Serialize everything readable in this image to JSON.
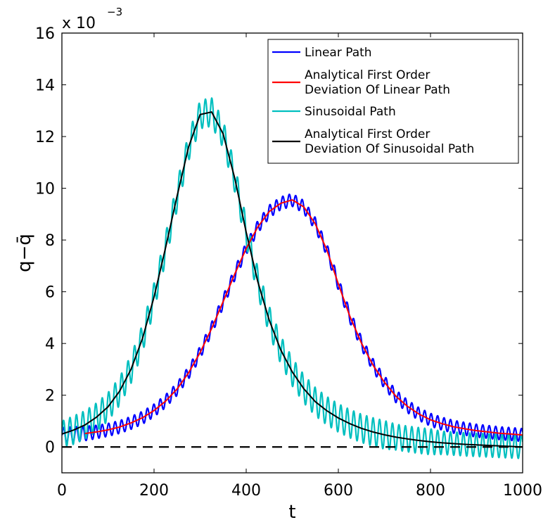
{
  "chart_data": {
    "type": "line",
    "xlabel": "t",
    "ylabel": "q−q̄",
    "exponent_label": "x 10",
    "exponent_power": "−3",
    "xlim": [
      0,
      1000
    ],
    "ylim": [
      -1,
      16
    ],
    "xticks": [
      0,
      200,
      400,
      600,
      800,
      1000
    ],
    "xtick_labels": [
      "0",
      "200",
      "400",
      "600",
      "800",
      "1000"
    ],
    "yticks": [
      0,
      2,
      4,
      6,
      8,
      10,
      12,
      14,
      16
    ],
    "ytick_labels": [
      "0",
      "2",
      "4",
      "6",
      "8",
      "10",
      "12",
      "14",
      "16"
    ],
    "grid": false,
    "legend_position": "top-right",
    "y_unit_scale": 0.001,
    "series": [
      {
        "name": "Linear Path",
        "color": "#0000ff",
        "style": "oscillating",
        "x": [
          0,
          25,
          50,
          75,
          100,
          125,
          150,
          175,
          200,
          225,
          250,
          275,
          300,
          325,
          350,
          375,
          400,
          425,
          450,
          475,
          500,
          525,
          550,
          575,
          600,
          625,
          650,
          675,
          700,
          725,
          750,
          775,
          800,
          825,
          850,
          875,
          900,
          925,
          950,
          975,
          1000
        ],
        "y": [
          0.45,
          0.48,
          0.52,
          0.58,
          0.66,
          0.77,
          0.93,
          1.13,
          1.41,
          1.77,
          2.24,
          2.87,
          3.65,
          4.58,
          5.62,
          6.68,
          7.67,
          8.5,
          9.1,
          9.42,
          9.55,
          9.28,
          8.62,
          7.62,
          6.3,
          5.05,
          4.02,
          3.17,
          2.5,
          1.96,
          1.57,
          1.27,
          1.05,
          0.9,
          0.78,
          0.7,
          0.63,
          0.58,
          0.53,
          0.5,
          0.46
        ],
        "oscillation_amplitude": [
          0.3,
          0.3,
          0.28,
          0.26,
          0.25,
          0.25,
          0.25,
          0.25,
          0.25,
          0.25,
          0.25,
          0.25,
          0.25,
          0.25,
          0.25,
          0.25,
          0.25,
          0.25,
          0.25,
          0.25,
          0.25,
          0.25,
          0.25,
          0.25,
          0.25,
          0.25,
          0.25,
          0.25,
          0.25,
          0.25,
          0.25,
          0.25,
          0.25,
          0.25,
          0.25,
          0.25,
          0.25,
          0.25,
          0.25,
          0.25,
          0.25
        ]
      },
      {
        "name": "Analytical First Order Deviation Of Linear Path",
        "color": "#ff0000",
        "style": "smooth",
        "x": [
          50,
          75,
          100,
          125,
          150,
          175,
          200,
          225,
          250,
          275,
          300,
          325,
          350,
          375,
          400,
          425,
          450,
          475,
          500,
          525,
          550,
          575,
          600,
          625,
          650,
          675,
          700,
          725,
          750,
          775,
          800,
          825,
          850,
          875,
          900,
          925,
          950,
          975,
          1000
        ],
        "y": [
          0.52,
          0.58,
          0.66,
          0.77,
          0.93,
          1.13,
          1.41,
          1.77,
          2.24,
          2.87,
          3.65,
          4.58,
          5.62,
          6.68,
          7.67,
          8.5,
          9.1,
          9.42,
          9.55,
          9.28,
          8.62,
          7.62,
          6.3,
          5.05,
          4.02,
          3.17,
          2.5,
          1.96,
          1.57,
          1.27,
          1.05,
          0.9,
          0.78,
          0.7,
          0.63,
          0.58,
          0.53,
          0.5,
          0.46
        ]
      },
      {
        "name": "Sinusoidal Path",
        "color": "#00bfbf",
        "style": "oscillating",
        "x": [
          0,
          25,
          50,
          75,
          100,
          125,
          150,
          175,
          200,
          225,
          250,
          275,
          300,
          325,
          350,
          375,
          400,
          425,
          450,
          475,
          500,
          525,
          550,
          575,
          600,
          625,
          650,
          675,
          700,
          725,
          750,
          775,
          800,
          825,
          850,
          875,
          900,
          925,
          950,
          975,
          1000
        ],
        "y": [
          0.5,
          0.65,
          0.85,
          1.15,
          1.55,
          2.15,
          3.0,
          4.2,
          5.8,
          7.7,
          9.7,
          11.6,
          12.85,
          12.95,
          12.1,
          10.4,
          8.3,
          6.4,
          4.9,
          3.75,
          2.9,
          2.25,
          1.75,
          1.4,
          1.12,
          0.9,
          0.72,
          0.58,
          0.47,
          0.38,
          0.31,
          0.25,
          0.2,
          0.16,
          0.13,
          0.1,
          0.08,
          0.06,
          0.04,
          0.02,
          0.0
        ],
        "oscillation_amplitude": [
          0.5,
          0.55,
          0.55,
          0.55,
          0.55,
          0.55,
          0.55,
          0.55,
          0.55,
          0.55,
          0.55,
          0.55,
          0.55,
          0.55,
          0.55,
          0.55,
          0.55,
          0.55,
          0.55,
          0.55,
          0.55,
          0.55,
          0.55,
          0.55,
          0.55,
          0.55,
          0.55,
          0.55,
          0.55,
          0.5,
          0.5,
          0.5,
          0.5,
          0.45,
          0.45,
          0.45,
          0.45,
          0.45,
          0.45,
          0.45,
          0.45
        ]
      },
      {
        "name": "Analytical First Order Deviation Of Sinusoidal Path",
        "color": "#000000",
        "style": "smooth",
        "x": [
          0,
          25,
          50,
          75,
          100,
          125,
          150,
          175,
          200,
          225,
          250,
          275,
          300,
          325,
          350,
          375,
          400,
          425,
          450,
          475,
          500,
          525,
          550,
          575,
          600,
          625,
          650,
          675,
          700,
          725,
          750,
          775,
          800,
          825,
          850,
          875,
          900,
          925,
          950,
          975,
          1000
        ],
        "y": [
          0.5,
          0.65,
          0.85,
          1.15,
          1.55,
          2.15,
          3.0,
          4.2,
          5.8,
          7.7,
          9.7,
          11.6,
          12.85,
          12.95,
          12.1,
          10.4,
          8.3,
          6.4,
          4.9,
          3.75,
          2.9,
          2.25,
          1.75,
          1.4,
          1.12,
          0.9,
          0.72,
          0.58,
          0.47,
          0.38,
          0.31,
          0.25,
          0.2,
          0.16,
          0.13,
          0.1,
          0.08,
          0.06,
          0.04,
          0.02,
          0.0
        ]
      },
      {
        "name": "",
        "color": "#000000",
        "style": "dashed",
        "x": [
          0,
          1000
        ],
        "y": [
          0,
          0
        ]
      }
    ],
    "legend": [
      {
        "label_lines": [
          "Linear Path"
        ],
        "color": "#0000ff"
      },
      {
        "label_lines": [
          "Analytical First Order",
          "Deviation Of Linear Path"
        ],
        "color": "#ff0000"
      },
      {
        "label_lines": [
          "Sinusoidal Path"
        ],
        "color": "#00bfbf"
      },
      {
        "label_lines": [
          "Analytical First Order",
          "Deviation Of Sinusoidal Path"
        ],
        "color": "#000000"
      }
    ]
  }
}
